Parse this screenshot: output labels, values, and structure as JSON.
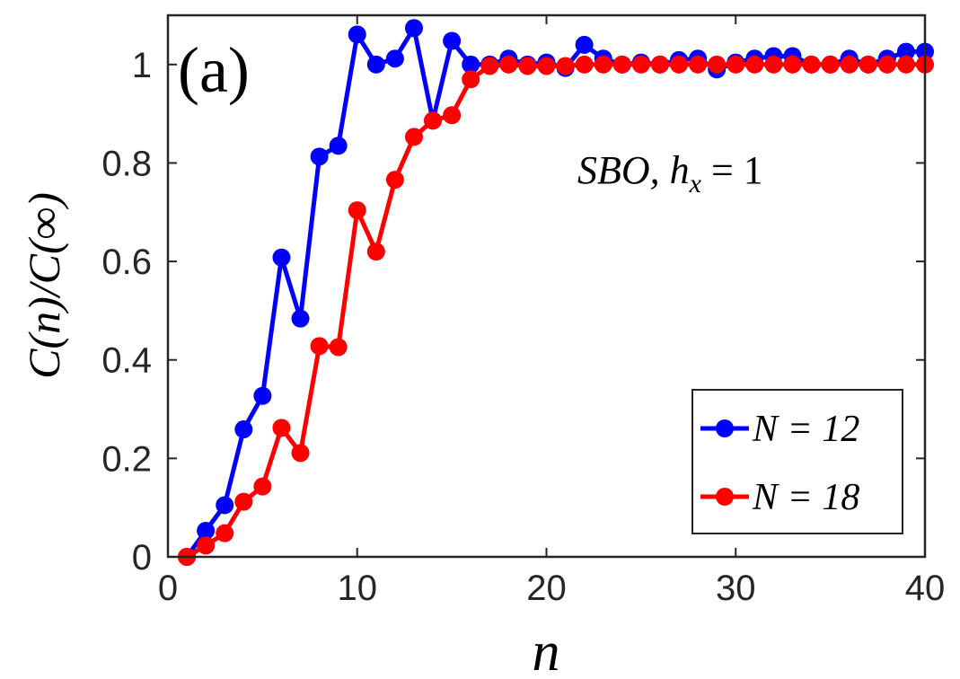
{
  "chart_data": {
    "type": "line",
    "panel_label": "(a)",
    "annotation": {
      "text": "SBO, h",
      "subscript": "x",
      "suffix": " = 1"
    },
    "xlabel": "n",
    "ylabel": "C(n)/C(∞)",
    "xlim": [
      0,
      40
    ],
    "ylim": [
      0,
      1.1
    ],
    "xticks": [
      0,
      10,
      20,
      30,
      40
    ],
    "yticks": [
      0,
      0.2,
      0.4,
      0.6,
      0.8,
      1
    ],
    "xtick_labels": [
      "0",
      "10",
      "20",
      "30",
      "40"
    ],
    "ytick_labels": [
      "0",
      "0.2",
      "0.4",
      "0.6",
      "0.8",
      "1"
    ],
    "legend_position": "bottom-right",
    "series": [
      {
        "name": "N = 12",
        "legend_label": "N = 12",
        "color": "#0000ff",
        "x": [
          1,
          2,
          3,
          4,
          5,
          6,
          7,
          8,
          9,
          10,
          11,
          12,
          13,
          14,
          15,
          16,
          17,
          18,
          19,
          20,
          21,
          22,
          23,
          24,
          25,
          26,
          27,
          28,
          29,
          30,
          31,
          32,
          33,
          34,
          35,
          36,
          37,
          38,
          39,
          40
        ],
        "y": [
          0,
          0.053,
          0.105,
          0.259,
          0.327,
          0.608,
          0.484,
          0.813,
          0.835,
          1.061,
          1.0,
          1.012,
          1.074,
          0.886,
          1.048,
          1.0,
          1.0,
          1.012,
          1.0,
          1.004,
          0.993,
          1.04,
          1.012,
          1.0,
          1.004,
          1.0,
          1.009,
          1.012,
          0.99,
          1.004,
          1.012,
          1.017,
          1.017,
          1.0,
          1.0,
          1.012,
          1.0,
          1.012,
          1.026,
          1.026
        ]
      },
      {
        "name": "N = 18",
        "legend_label": "N = 18",
        "color": "#ff0000",
        "x": [
          1,
          2,
          3,
          4,
          5,
          6,
          7,
          8,
          9,
          10,
          11,
          12,
          13,
          14,
          15,
          16,
          17,
          18,
          19,
          20,
          21,
          22,
          23,
          24,
          25,
          26,
          27,
          28,
          29,
          30,
          31,
          32,
          33,
          34,
          35,
          36,
          37,
          38,
          39,
          40
        ],
        "y": [
          0,
          0.023,
          0.048,
          0.112,
          0.143,
          0.262,
          0.211,
          0.428,
          0.426,
          0.704,
          0.62,
          0.766,
          0.853,
          0.886,
          0.897,
          0.97,
          0.997,
          1.0,
          0.997,
          0.997,
          0.997,
          1.0,
          1.0,
          1.0,
          1.0,
          1.0,
          1.0,
          1.0,
          1.0,
          1.0,
          1.0,
          1.0,
          1.0,
          1.0,
          1.0,
          1.0,
          1.0,
          1.0,
          1.0,
          1.0
        ]
      }
    ]
  }
}
